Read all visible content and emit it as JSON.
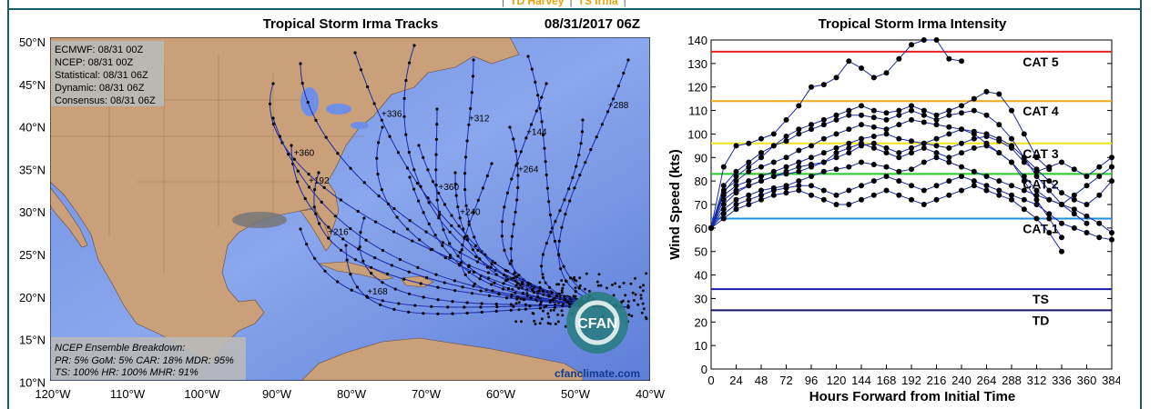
{
  "nav": {
    "links": [
      "TD Harvey",
      "TS Irma"
    ]
  },
  "map": {
    "title": "Tropical Storm Irma Tracks",
    "datetime": "08/31/2017 06Z",
    "lat_ticks": [
      "50°N",
      "45°N",
      "40°N",
      "35°N",
      "30°N",
      "25°N",
      "20°N",
      "15°N",
      "10°N"
    ],
    "lon_ticks": [
      "120°W",
      "110°W",
      "100°W",
      "90°W",
      "80°W",
      "70°W",
      "60°W",
      "50°W",
      "40°W"
    ],
    "legend": [
      "ECMWF: 08/31 00Z",
      "NCEP: 08/31 00Z",
      "Statistical: 08/31 06Z",
      "Dynamic: 08/31 06Z",
      "Consensus: 08/31 06Z"
    ],
    "breakdown": [
      "NCEP Ensemble Breakdown:",
      "PR: 5% GoM: 5% CAR: 18% MDR: 95%",
      "TS: 100% HR: 100% MHR: 91%"
    ],
    "logo_text": "CFAN",
    "site": "cfanclimate.com",
    "hour_labels": [
      "+360",
      "+336",
      "+312",
      "+288",
      "+264",
      "+240",
      "+216",
      "+192",
      "+168",
      "+144"
    ]
  },
  "chart_data": {
    "type": "line",
    "title": "Tropical Storm Irma Intensity",
    "xlabel": "Hours Forward from Initial Time",
    "ylabel": "Wind Speed (kts)",
    "xlim": [
      0,
      384
    ],
    "ylim": [
      0,
      140
    ],
    "xticks": [
      0,
      24,
      48,
      72,
      96,
      120,
      144,
      168,
      192,
      216,
      240,
      264,
      288,
      312,
      336,
      360,
      384
    ],
    "yticks": [
      0,
      10,
      20,
      30,
      40,
      50,
      60,
      70,
      80,
      90,
      100,
      110,
      120,
      130,
      140
    ],
    "thresholds": [
      {
        "label": "CAT 5",
        "value": 135,
        "color": "#e8231f"
      },
      {
        "label": "CAT 4",
        "value": 114,
        "color": "#f0a818"
      },
      {
        "label": "CAT 3",
        "value": 96,
        "color": "#f2e318"
      },
      {
        "label": "CAT 2",
        "value": 83,
        "color": "#22cc22"
      },
      {
        "label": "CAT 1",
        "value": 64,
        "color": "#1e90e0"
      },
      {
        "label": "TS",
        "value": 34,
        "color": "#1a1aa8"
      },
      {
        "label": "TD",
        "value": 25,
        "color": "#141468"
      }
    ],
    "series": [
      {
        "x": [
          0,
          12,
          24,
          36,
          48,
          60,
          72,
          84,
          96,
          108,
          120,
          132,
          144,
          156,
          168,
          180,
          192,
          204,
          216,
          228,
          240
        ],
        "y": [
          60,
          86,
          95,
          96,
          98,
          100,
          106,
          112,
          120,
          121,
          124,
          131,
          128,
          124,
          126,
          132,
          138,
          140,
          140,
          132,
          131
        ]
      },
      {
        "x": [
          0,
          12,
          24,
          36,
          48,
          60,
          72,
          84,
          96,
          108,
          120,
          132,
          144,
          156,
          168,
          180,
          192,
          204,
          216,
          228,
          240,
          252,
          264,
          276,
          288,
          300,
          312,
          324
        ],
        "y": [
          60,
          75,
          82,
          86,
          90,
          95,
          99,
          102,
          104,
          106,
          108,
          110,
          112,
          110,
          109,
          110,
          112,
          110,
          108,
          110,
          112,
          115,
          118,
          117,
          110,
          100,
          90,
          85
        ]
      },
      {
        "x": [
          0,
          12,
          24,
          36,
          48,
          60,
          72,
          84,
          96,
          108,
          120,
          132,
          144,
          156,
          168,
          180,
          192,
          204,
          216,
          228,
          240,
          252,
          264,
          276,
          288,
          300,
          312,
          324,
          336,
          348,
          360
        ],
        "y": [
          60,
          78,
          84,
          88,
          92,
          95,
          97,
          100,
          102,
          104,
          106,
          108,
          108,
          107,
          106,
          108,
          110,
          108,
          106,
          108,
          109,
          110,
          108,
          104,
          98,
          90,
          82,
          76,
          70,
          66,
          62
        ]
      },
      {
        "x": [
          0,
          12,
          24,
          36,
          48,
          60,
          72,
          84,
          96,
          108,
          120,
          132,
          144,
          156,
          168,
          180,
          192,
          204,
          216,
          228,
          240,
          252,
          264,
          276,
          288,
          300,
          312,
          324,
          336,
          348,
          360,
          372,
          384
        ],
        "y": [
          60,
          76,
          80,
          84,
          86,
          88,
          90,
          93,
          95,
          98,
          100,
          102,
          104,
          103,
          102,
          104,
          106,
          105,
          104,
          103,
          102,
          101,
          100,
          98,
          95,
          90,
          85,
          80,
          75,
          72,
          70,
          74,
          80
        ]
      },
      {
        "x": [
          0,
          12,
          24,
          36,
          48,
          60,
          72,
          84,
          96,
          108,
          120,
          132,
          144,
          156,
          168,
          180,
          192,
          204,
          216,
          228,
          240,
          252,
          264,
          276,
          288,
          300,
          312,
          324,
          336
        ],
        "y": [
          60,
          74,
          78,
          80,
          82,
          84,
          86,
          88,
          90,
          92,
          94,
          96,
          98,
          99,
          100,
          98,
          97,
          96,
          98,
          100,
          102,
          100,
          96,
          92,
          88,
          80,
          72,
          64,
          56
        ]
      },
      {
        "x": [
          0,
          12,
          24,
          36,
          48,
          60,
          72,
          84,
          96,
          108,
          120,
          132,
          144,
          156,
          168,
          180,
          192,
          204,
          216,
          228,
          240,
          252,
          264,
          276,
          288,
          300,
          312,
          324,
          336,
          348,
          360,
          372,
          384
        ],
        "y": [
          60,
          72,
          76,
          78,
          80,
          82,
          84,
          86,
          87,
          88,
          90,
          92,
          95,
          96,
          94,
          92,
          94,
          96,
          95,
          94,
          96,
          98,
          99,
          97,
          94,
          88,
          84,
          86,
          88,
          85,
          82,
          86,
          90
        ]
      },
      {
        "x": [
          0,
          12,
          24,
          36,
          48,
          60,
          72,
          84,
          96,
          108,
          120,
          132,
          144,
          156,
          168,
          180,
          192,
          204,
          216,
          228,
          240,
          252,
          264,
          276,
          288,
          300,
          312,
          324,
          336,
          348,
          360,
          372,
          384
        ],
        "y": [
          60,
          70,
          75,
          78,
          80,
          82,
          83,
          84,
          86,
          88,
          92,
          94,
          96,
          94,
          92,
          90,
          92,
          94,
          92,
          90,
          92,
          94,
          95,
          92,
          88,
          82,
          76,
          72,
          70,
          68,
          65,
          62,
          58
        ]
      },
      {
        "x": [
          0,
          12,
          24,
          36,
          48,
          60,
          72,
          84,
          96,
          108,
          120,
          132,
          144,
          156,
          168,
          180,
          192,
          204,
          216,
          228,
          240,
          252,
          264,
          276,
          288,
          300,
          312,
          324,
          336,
          348,
          360,
          372,
          384
        ],
        "y": [
          60,
          68,
          72,
          74,
          76,
          77,
          78,
          80,
          82,
          84,
          85,
          86,
          88,
          87,
          86,
          84,
          85,
          88,
          90,
          88,
          86,
          84,
          82,
          80,
          78,
          76,
          74,
          72,
          70,
          74,
          78,
          82,
          86
        ]
      },
      {
        "x": [
          0,
          12,
          24,
          36,
          48,
          60,
          72,
          84,
          96,
          108,
          120,
          132,
          144,
          156,
          168,
          180,
          192,
          204,
          216,
          228,
          240,
          252,
          264,
          276,
          288,
          300,
          312,
          324,
          336,
          348,
          360,
          372,
          384
        ],
        "y": [
          60,
          66,
          70,
          72,
          74,
          76,
          77,
          78,
          78,
          76,
          74,
          76,
          78,
          80,
          82,
          80,
          78,
          76,
          78,
          80,
          82,
          80,
          78,
          76,
          74,
          72,
          70,
          66,
          62,
          60,
          58,
          56,
          55
        ]
      },
      {
        "x": [
          0,
          12,
          24,
          36,
          48,
          60,
          72,
          84,
          96,
          108,
          120,
          132,
          144,
          156,
          168,
          180,
          192,
          204,
          216,
          228,
          240,
          252,
          264,
          276,
          288,
          300,
          312,
          324,
          336
        ],
        "y": [
          60,
          64,
          68,
          70,
          72,
          74,
          75,
          76,
          74,
          72,
          70,
          70,
          72,
          74,
          76,
          74,
          72,
          70,
          72,
          74,
          76,
          78,
          76,
          74,
          72,
          68,
          64,
          58,
          50
        ]
      }
    ]
  }
}
